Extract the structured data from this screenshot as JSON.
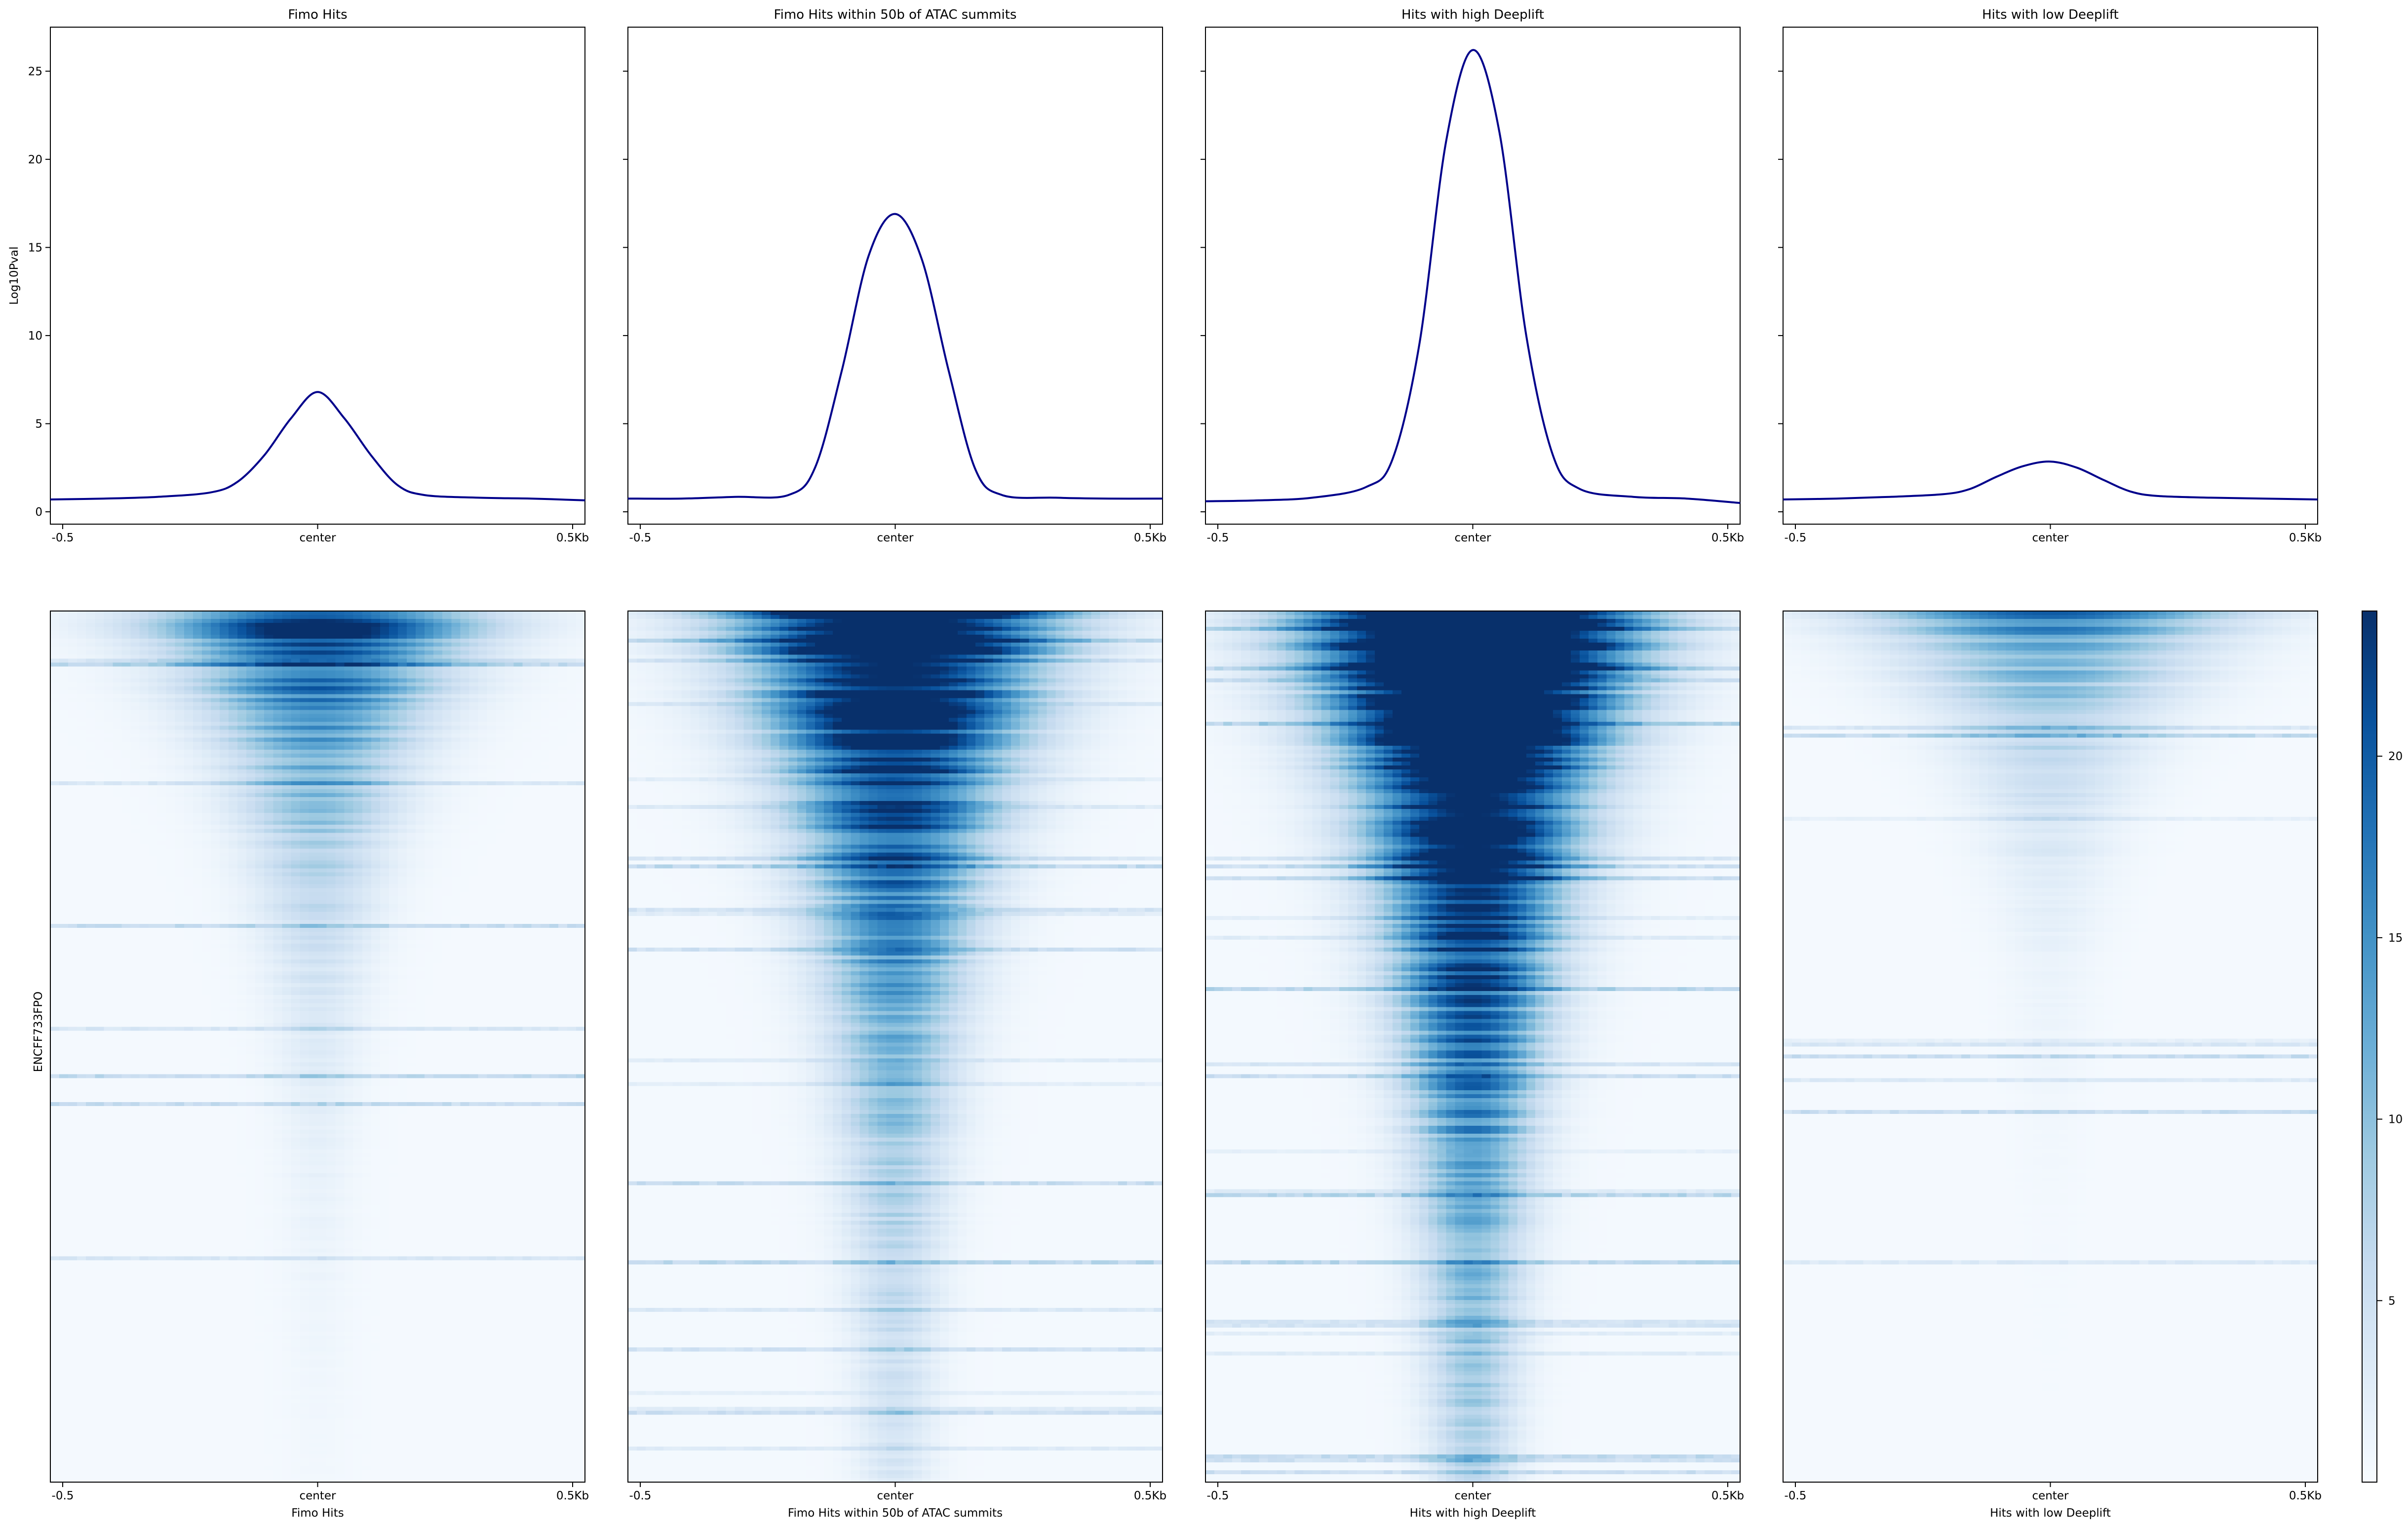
{
  "chart_data": [
    {
      "type": "line",
      "panel": 1,
      "title": "Fimo Hits",
      "ylabel": "Log10Pval",
      "xlabel": "",
      "x_tick_labels": [
        "-0.5",
        "center",
        "0.5Kb"
      ],
      "xlim": [
        -0.5,
        0.5
      ],
      "ylim": [
        -0.7,
        27.5
      ],
      "y_ticks": [
        0,
        5,
        10,
        15,
        20,
        25
      ],
      "y_tick_labels": [
        "0",
        "5",
        "10",
        "15",
        "20",
        "25"
      ],
      "line_color": "#00008b",
      "profile": {
        "x": [
          -0.5,
          -0.4,
          -0.3,
          -0.2,
          -0.15,
          -0.1,
          -0.05,
          0,
          0.05,
          0.1,
          0.15,
          0.2,
          0.3,
          0.4,
          0.5
        ],
        "y": [
          0.7,
          0.75,
          0.85,
          1.1,
          1.7,
          3.2,
          5.3,
          6.8,
          5.3,
          3.2,
          1.5,
          0.95,
          0.8,
          0.75,
          0.65
        ]
      }
    },
    {
      "type": "line",
      "panel": 2,
      "title": "Fimo Hits within 50b of ATAC summits",
      "ylabel": "",
      "xlabel": "",
      "x_tick_labels": [
        "-0.5",
        "center",
        "0.5Kb"
      ],
      "xlim": [
        -0.5,
        0.5
      ],
      "ylim": [
        -0.7,
        27.5
      ],
      "y_ticks": [
        0,
        5,
        10,
        15,
        20,
        25
      ],
      "line_color": "#00008b",
      "profile": {
        "x": [
          -0.5,
          -0.4,
          -0.3,
          -0.2,
          -0.15,
          -0.1,
          -0.05,
          0,
          0.05,
          0.1,
          0.15,
          0.2,
          0.3,
          0.4,
          0.5
        ],
        "y": [
          0.75,
          0.75,
          0.85,
          0.95,
          2.5,
          8.0,
          14.5,
          16.9,
          14.3,
          8.0,
          2.4,
          0.95,
          0.8,
          0.75,
          0.75
        ]
      }
    },
    {
      "type": "line",
      "panel": 3,
      "title": "Hits with high Deeplift",
      "ylabel": "",
      "xlabel": "",
      "x_tick_labels": [
        "-0.5",
        "center",
        "0.5Kb"
      ],
      "xlim": [
        -0.5,
        0.5
      ],
      "ylim": [
        -0.7,
        27.5
      ],
      "y_ticks": [
        0,
        5,
        10,
        15,
        20,
        25
      ],
      "line_color": "#00008b",
      "profile": {
        "x": [
          -0.5,
          -0.4,
          -0.3,
          -0.2,
          -0.15,
          -0.1,
          -0.05,
          0,
          0.05,
          0.1,
          0.15,
          0.2,
          0.3,
          0.4,
          0.5
        ],
        "y": [
          0.6,
          0.65,
          0.8,
          1.4,
          3.0,
          9.5,
          21.0,
          26.2,
          21.5,
          10.0,
          3.2,
          1.3,
          0.85,
          0.75,
          0.5
        ]
      }
    },
    {
      "type": "line",
      "panel": 4,
      "title": "Hits with low Deeplift",
      "ylabel": "",
      "xlabel": "",
      "x_tick_labels": [
        "-0.5",
        "center",
        "0.5Kb"
      ],
      "xlim": [
        -0.5,
        0.5
      ],
      "ylim": [
        -0.7,
        27.5
      ],
      "y_ticks": [
        0,
        5,
        10,
        15,
        20,
        25
      ],
      "line_color": "#00008b",
      "profile": {
        "x": [
          -0.5,
          -0.4,
          -0.3,
          -0.2,
          -0.15,
          -0.1,
          -0.05,
          0,
          0.05,
          0.1,
          0.15,
          0.2,
          0.3,
          0.4,
          0.5
        ],
        "y": [
          0.7,
          0.75,
          0.85,
          1.0,
          1.3,
          2.0,
          2.6,
          2.85,
          2.5,
          1.8,
          1.15,
          0.9,
          0.8,
          0.75,
          0.7
        ]
      }
    },
    {
      "type": "heatmap",
      "panel": 1,
      "xlabel": "Fimo Hits",
      "ylabel": "ENCFF733FPO",
      "x_tick_labels": [
        "-0.5",
        "center",
        "0.5Kb"
      ],
      "colormap": "Blues",
      "color_range": [
        0,
        24
      ],
      "summary": {
        "peak_max": 24,
        "decay": 0.23,
        "width_start": 0.17,
        "width_decay": 0.25,
        "background": 0.4,
        "noise": 0.03
      }
    },
    {
      "type": "heatmap",
      "panel": 2,
      "xlabel": "Fimo Hits within 50b of ATAC summits",
      "x_tick_labels": [
        "-0.5",
        "center",
        "0.5Kb"
      ],
      "colormap": "Blues",
      "color_range": [
        0,
        24
      ],
      "summary": {
        "peak_max": 36,
        "decay": 0.42,
        "width_start": 0.17,
        "width_decay": 0.4,
        "background": 0.45,
        "noise": 0.08
      }
    },
    {
      "type": "heatmap",
      "panel": 3,
      "xlabel": "Hits with high Deeplift",
      "x_tick_labels": [
        "-0.5",
        "center",
        "0.5Kb"
      ],
      "colormap": "Blues",
      "color_range": [
        0,
        24
      ],
      "summary": {
        "peak_max": 48,
        "decay": 0.5,
        "width_start": 0.17,
        "width_decay": 0.45,
        "background": 0.45,
        "noise": 0.09
      }
    },
    {
      "type": "heatmap",
      "panel": 4,
      "xlabel": "Hits with low Deeplift",
      "x_tick_labels": [
        "-0.5",
        "center",
        "0.5Kb"
      ],
      "colormap": "Blues",
      "color_range": [
        0,
        24
      ],
      "summary": {
        "peak_max": 16,
        "decay": 0.16,
        "width_start": 0.2,
        "width_decay": 0.2,
        "background": 0.35,
        "noise": 0.03
      }
    },
    {
      "type": "colorbar",
      "colormap": "Blues",
      "range": [
        0,
        24
      ],
      "ticks": [
        5,
        10,
        15,
        20
      ],
      "tick_labels": [
        "5",
        "10",
        "15",
        "20"
      ]
    }
  ]
}
